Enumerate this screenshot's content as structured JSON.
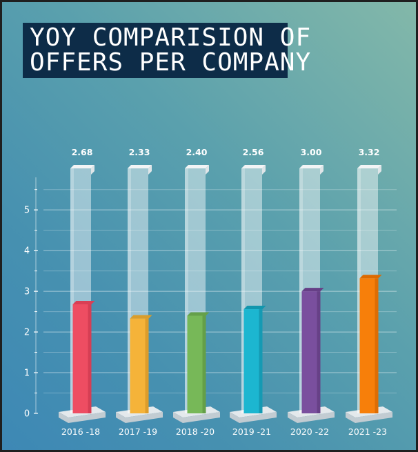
{
  "chart_data": {
    "type": "bar",
    "title": [
      "YOY COMPARISION OF",
      "OFFERS PER COMPANY"
    ],
    "categories": [
      "2016 -18",
      "2017 -19",
      "2018 -20",
      "2019 -21",
      "2020 -22",
      "2021 -23"
    ],
    "values": [
      2.68,
      2.33,
      2.4,
      2.56,
      3.0,
      3.32
    ],
    "value_labels": [
      "2.68",
      "2.33",
      "2.40",
      "2.56",
      "3.00",
      "3.32"
    ],
    "ylim": [
      0,
      5.8
    ],
    "yticks": [
      0,
      1,
      2,
      3,
      4,
      5
    ],
    "yticklabels": [
      "0",
      "1",
      "2",
      "3",
      "4",
      "5"
    ],
    "minor_step": 0.5,
    "grid": true,
    "colors": [
      "#ee4d62",
      "#f5b339",
      "#77b858",
      "#1cb6d0",
      "#7a4f9e",
      "#f77f0a"
    ],
    "colors_top": [
      "#d93f55",
      "#d99d2c",
      "#65a04a",
      "#1296ad",
      "#663f86",
      "#dd6a00"
    ],
    "colors_side": [
      "#c23349",
      "#c98a20",
      "#558a3d",
      "#10849a",
      "#573474",
      "#c95e00"
    ],
    "xlabel": "",
    "ylabel": ""
  }
}
